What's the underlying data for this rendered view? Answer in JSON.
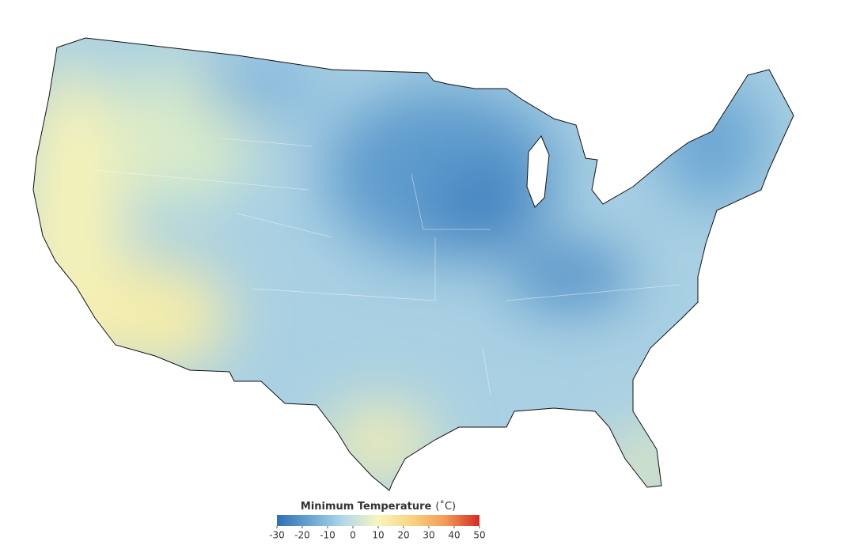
{
  "legend": {
    "title": "Minimum Temperature",
    "unit": "(˚C)",
    "lim": [
      -30,
      50
    ],
    "ticks": [
      -30,
      -20,
      -10,
      0,
      10,
      20,
      30,
      40,
      50
    ],
    "colors": [
      "#2f6fb4",
      "#6aa6d3",
      "#b3dae8",
      "#f7f5bd",
      "#f9d47e",
      "#f39a55",
      "#d42a26"
    ]
  }
}
